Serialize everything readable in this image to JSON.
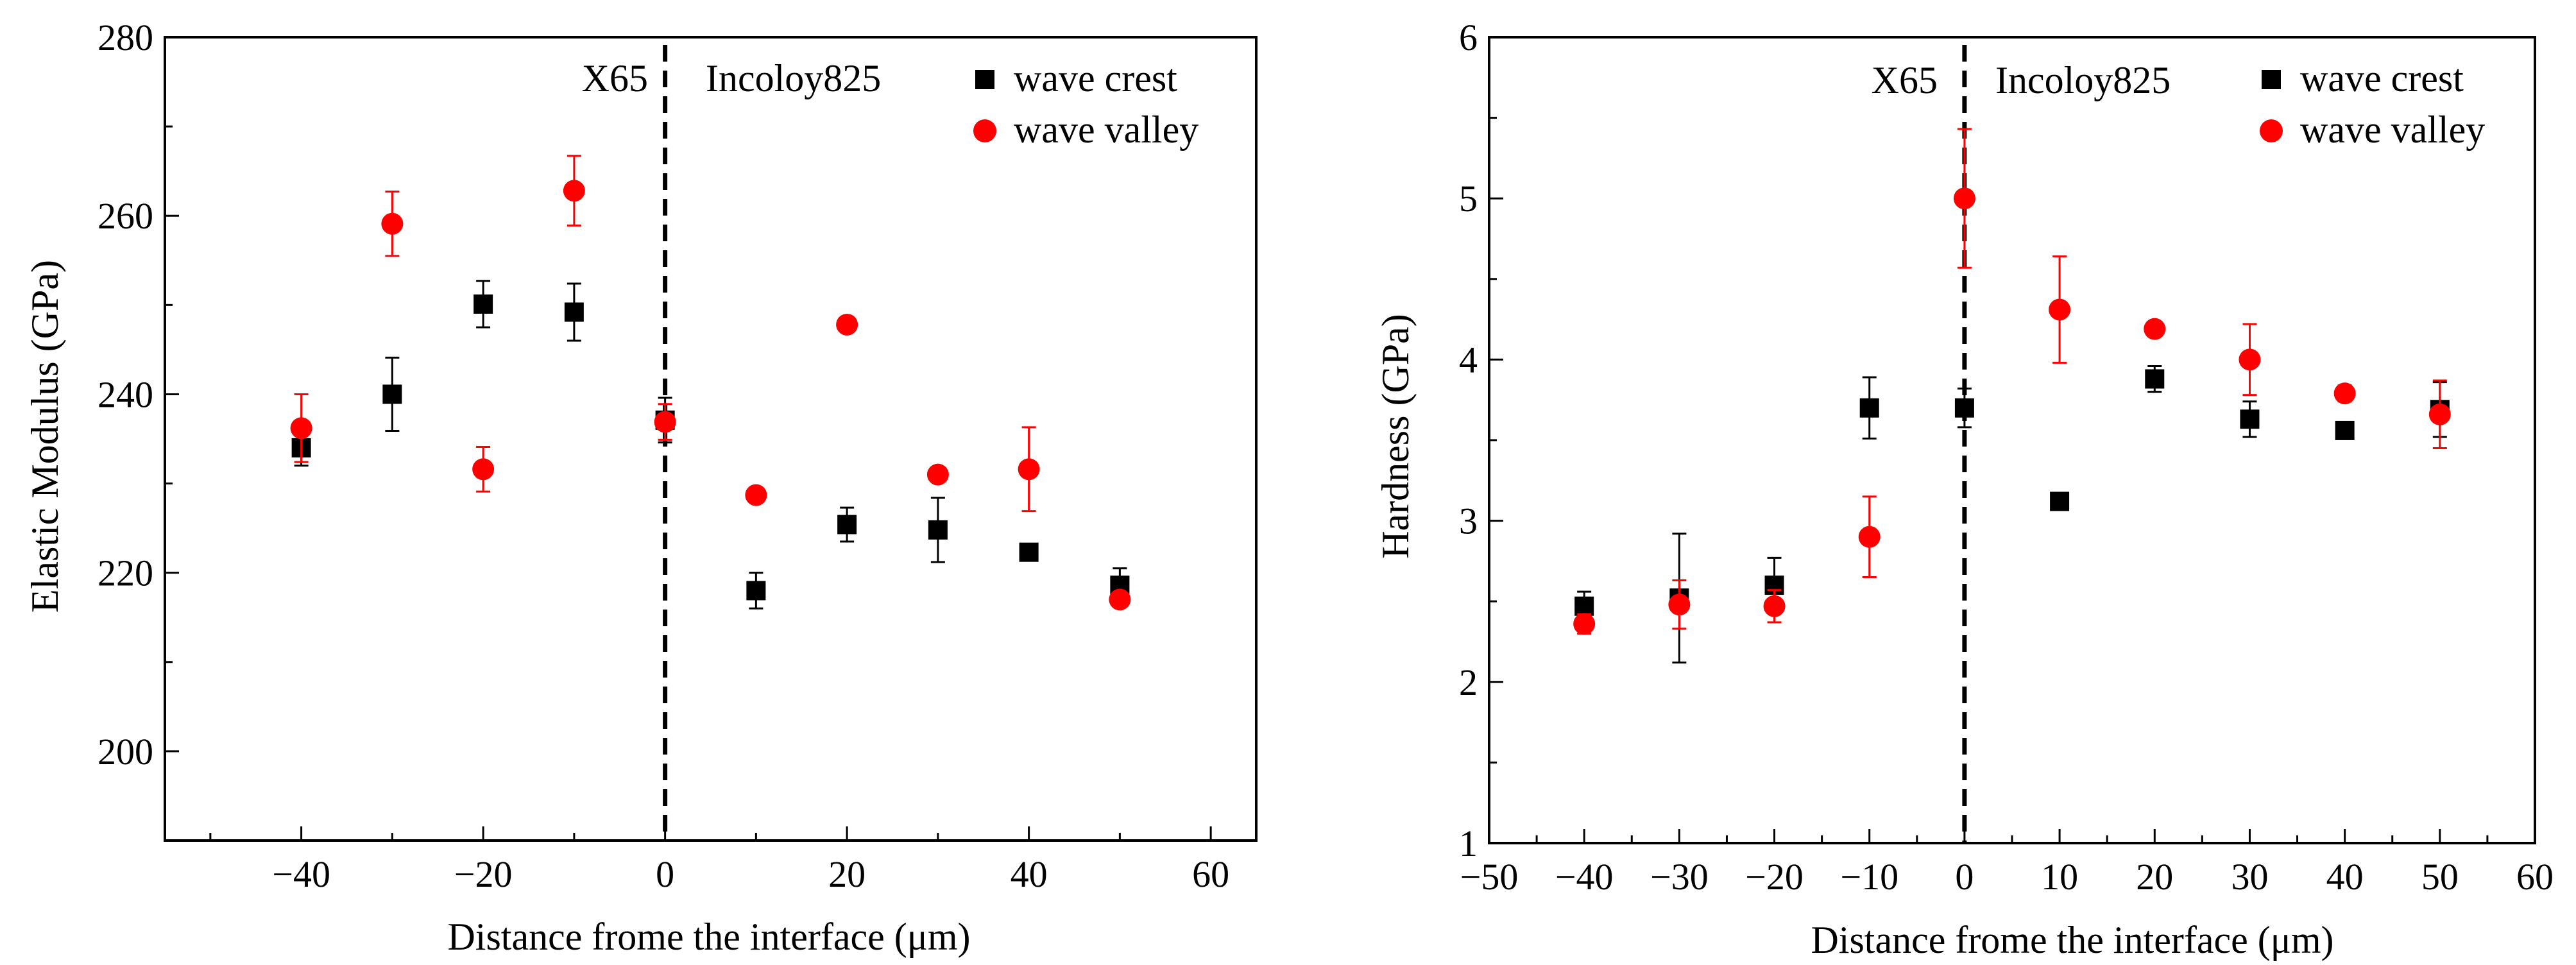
{
  "chart_data": [
    {
      "type": "scatter",
      "ylabel": "Elastic Modulus (GPa)",
      "xlabel": "Distance frome the interface (μm)",
      "xlim": [
        -55,
        65
      ],
      "ylim": [
        190,
        280
      ],
      "xticks": [
        -40,
        -20,
        0,
        20,
        40,
        60
      ],
      "xtick_labels": [
        "−40",
        "−20",
        "0",
        "20",
        "40",
        "60"
      ],
      "yticks": [
        200,
        220,
        240,
        260,
        280
      ],
      "ytick_labels": [
        "200",
        "220",
        "240",
        "260",
        "280"
      ],
      "annotations": {
        "left": "X65",
        "right": "Incoloy825"
      },
      "divider_x": 0,
      "legend_position": "top-right",
      "series": [
        {
          "name": "wave crest",
          "marker": "square",
          "color": "#000000",
          "x": [
            -40,
            -30,
            -20,
            -10,
            0,
            10,
            20,
            30,
            40,
            50
          ],
          "y": [
            234,
            240,
            250.1,
            249.2,
            237.1,
            218,
            225.4,
            224.8,
            222.3,
            218.6
          ],
          "err": [
            2,
            4.1,
            2.6,
            3.2,
            2.5,
            2,
            1.9,
            3.6,
            0,
            1.9
          ]
        },
        {
          "name": "wave valley",
          "marker": "circle",
          "color": "#ff0000",
          "x": [
            -40,
            -30,
            -20,
            -10,
            0,
            10,
            20,
            30,
            40,
            50
          ],
          "y": [
            236.2,
            259.1,
            231.6,
            262.8,
            236.9,
            228.7,
            247.8,
            231,
            231.6,
            217
          ],
          "err": [
            3.8,
            3.6,
            2.5,
            3.9,
            2,
            0,
            0,
            0.5,
            4.7,
            0.7
          ]
        }
      ]
    },
    {
      "type": "scatter",
      "ylabel": "Hardness (GPa)",
      "xlabel": "Distance frome the interface (μm)",
      "xlim": [
        -50,
        60
      ],
      "ylim": [
        1,
        6
      ],
      "xticks": [
        -50,
        -40,
        -30,
        -20,
        -10,
        0,
        10,
        20,
        30,
        40,
        50,
        60
      ],
      "xtick_labels": [
        "−50",
        "−40",
        "−30",
        "−20",
        "−10",
        "0",
        "10",
        "20",
        "30",
        "40",
        "50",
        "60"
      ],
      "yticks": [
        1,
        2,
        3,
        4,
        5,
        6
      ],
      "ytick_labels": [
        "1",
        "2",
        "3",
        "4",
        "5",
        "6"
      ],
      "annotations": {
        "left": "X65",
        "right": "Incoloy825"
      },
      "divider_x": 0,
      "legend_position": "top-right",
      "series": [
        {
          "name": "wave crest",
          "marker": "square",
          "color": "#000000",
          "x": [
            -40,
            -30,
            -20,
            -10,
            0,
            10,
            20,
            30,
            40,
            50
          ],
          "y": [
            2.47,
            2.52,
            2.6,
            3.7,
            3.7,
            3.12,
            3.88,
            3.63,
            3.56,
            3.69
          ],
          "err": [
            0.09,
            0.4,
            0.17,
            0.19,
            0.12,
            0,
            0.08,
            0.11,
            0.05,
            0.17
          ]
        },
        {
          "name": "wave valley",
          "marker": "circle",
          "color": "#ff0000",
          "x": [
            -40,
            -30,
            -20,
            -10,
            0,
            10,
            20,
            30,
            40,
            50
          ],
          "y": [
            2.36,
            2.48,
            2.47,
            2.9,
            5.0,
            4.31,
            4.19,
            4.0,
            3.79,
            3.66
          ],
          "err": [
            0.06,
            0.15,
            0.1,
            0.25,
            0.43,
            0.33,
            0.03,
            0.22,
            0.05,
            0.21
          ]
        }
      ]
    }
  ]
}
